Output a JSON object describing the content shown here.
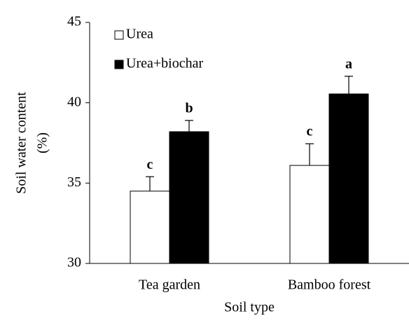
{
  "chart_data": {
    "type": "bar",
    "categories": [
      "Tea garden",
      "Bamboo forest"
    ],
    "series": [
      {
        "name": "Urea",
        "color": "#ffffff",
        "values": [
          34.5,
          36.1
        ],
        "errors": [
          0.9,
          1.35
        ],
        "letters": [
          "c",
          "c"
        ]
      },
      {
        "name": "Urea+biochar",
        "color": "#000000",
        "values": [
          38.2,
          40.55
        ],
        "errors": [
          0.7,
          1.1
        ],
        "letters": [
          "b",
          "a"
        ]
      }
    ],
    "xlabel": "Soil type",
    "ylabel": [
      "Soil water content",
      "(%)"
    ],
    "ylim": [
      30,
      45
    ],
    "yticks": [
      30,
      35,
      40,
      45
    ],
    "legend": "upper left",
    "grid": false
  }
}
